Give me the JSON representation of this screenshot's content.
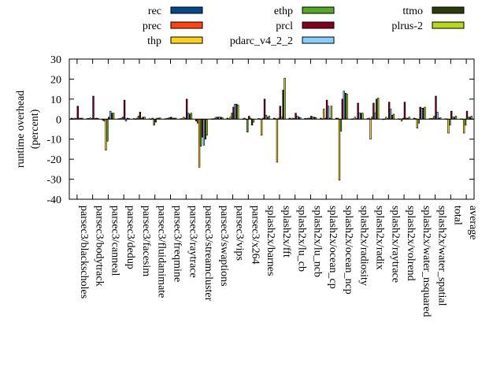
{
  "chart_data": {
    "type": "bar",
    "title": "",
    "xlabel": "",
    "ylabel": "runtime overhead\n(percent)",
    "ylim": [
      -40,
      30
    ],
    "yticks": [
      -40,
      -30,
      -20,
      -10,
      0,
      10,
      20,
      30
    ],
    "grid": false,
    "legend_position": "top",
    "categories": [
      "parsec3/blackscholes",
      "parsec3/bodytrack",
      "parsec3/canneal",
      "parsec3/dedup",
      "parsec3/facesim",
      "parsec3/fluidanimate",
      "parsec3/freqmine",
      "parsec3/raytrace",
      "parsec3/streamcluster",
      "parsec3/swaptions",
      "parsec3/vips",
      "parsec3/x264",
      "splash2x/barnes",
      "splash2x/fft",
      "splash2x/lu_cb",
      "splash2x/lu_ncb",
      "splash2x/ocean_cp",
      "splash2x/ocean_ncp",
      "splash2x/radiosity",
      "splash2x/radix",
      "splash2x/raytrace",
      "splash2x/volrend",
      "splash2x/water_nsquared",
      "splash2x/water_spatial",
      "total",
      "average"
    ],
    "series": [
      {
        "name": "rec",
        "color": "#08478c",
        "values": [
          0.5,
          0.3,
          -0.5,
          0.2,
          0.3,
          0.2,
          0.2,
          0.2,
          -1,
          0.2,
          0.5,
          0.1,
          0.3,
          0.5,
          0.5,
          0.4,
          0.5,
          0.5,
          0.1,
          0.3,
          -0.2,
          0.2,
          0.5,
          0.3,
          0.2,
          0.1
        ]
      },
      {
        "name": "prec",
        "color": "#ff4513",
        "values": [
          0.2,
          0.4,
          -1,
          0.3,
          0.1,
          0.1,
          0.3,
          0.3,
          -2,
          0.1,
          0.2,
          0.5,
          0.2,
          0.3,
          0.2,
          0.3,
          0.2,
          0.5,
          0.2,
          0.5,
          0.1,
          0.1,
          0.3,
          0.3,
          0.1,
          0.1
        ]
      },
      {
        "name": "thp",
        "color": "#ffd020",
        "values": [
          0.5,
          0.6,
          -15.5,
          0.5,
          0.5,
          0.5,
          0.5,
          1,
          -24,
          0.5,
          1,
          0,
          -8,
          -21.5,
          0.5,
          0.5,
          5,
          -30.5,
          1,
          -10,
          1,
          -1,
          -4.5,
          0.5,
          -7,
          -7
        ]
      },
      {
        "name": "ethp",
        "color": "#56a62a",
        "values": [
          0.3,
          0.3,
          -11,
          1,
          1.5,
          -3,
          0.8,
          0.5,
          -13.5,
          1,
          3,
          -6.5,
          0.5,
          0.5,
          0.3,
          0.5,
          0.5,
          -6,
          0.3,
          1,
          0.3,
          0.5,
          -2,
          1.5,
          -3,
          -3
        ]
      },
      {
        "name": "prcl",
        "color": "#800020",
        "values": [
          6.5,
          11.5,
          1,
          9.5,
          3.5,
          -1.5,
          1,
          10,
          -9,
          1,
          6,
          1.5,
          10,
          6.5,
          3,
          1.5,
          9.5,
          10,
          8,
          8,
          8.5,
          8.5,
          6,
          11.5,
          4,
          4
        ]
      },
      {
        "name": "pdarc_v4_2_2",
        "color": "#87ceff",
        "values": [
          0.5,
          0.3,
          4,
          -1,
          0.5,
          0.5,
          0.5,
          3,
          -13,
          1,
          7.5,
          0.5,
          2,
          1,
          1.5,
          1,
          6.5,
          14,
          3,
          3,
          5,
          0.5,
          5.5,
          3.5,
          1,
          1
        ]
      },
      {
        "name": "ttmo",
        "color": "#2f3a0c",
        "values": [
          0.5,
          0.5,
          3,
          0.5,
          1,
          0.5,
          0.5,
          2.5,
          -10,
          1,
          7.5,
          -3,
          1,
          14.5,
          1,
          1,
          0.5,
          13,
          3,
          10,
          2,
          0.5,
          5.5,
          0.5,
          1,
          1
        ]
      },
      {
        "name": "plrus-2",
        "color": "#b5d91a",
        "values": [
          0.5,
          0.4,
          3,
          0.3,
          1,
          0.6,
          0.5,
          3,
          -8,
          0.7,
          7,
          -1.5,
          1.5,
          20.5,
          0.8,
          0.8,
          6.5,
          12.5,
          3,
          10.5,
          2.5,
          1,
          6,
          0.7,
          1.5,
          1.5
        ]
      }
    ]
  }
}
